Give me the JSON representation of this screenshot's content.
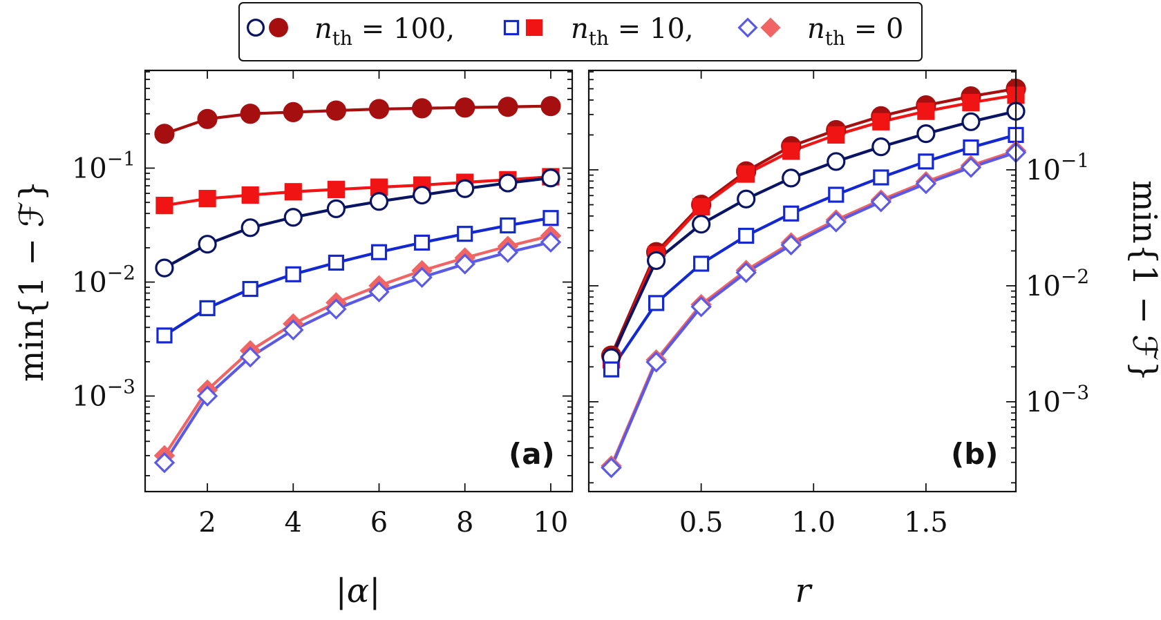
{
  "legend": {
    "entries": [
      {
        "label": "n_th = 100,",
        "n_value": "100",
        "punct": ","
      },
      {
        "label": "n_th = 10,",
        "n_value": "10",
        "punct": ","
      },
      {
        "label": "n_th = 0",
        "n_value": "0",
        "punct": ""
      }
    ],
    "var": "n",
    "sub": "th"
  },
  "chart_data": [
    {
      "type": "line",
      "panel": "(a)",
      "title": "",
      "xlabel": "|α|",
      "ylabel": "min{1 − ℱ}",
      "yscale": "log",
      "xlim": [
        0.55,
        10.5
      ],
      "ylim": [
        0.000145,
        0.72
      ],
      "xticks": [
        2,
        4,
        6,
        8,
        10
      ],
      "xtick_labels": [
        "2",
        "4",
        "6",
        "8",
        "10"
      ],
      "yticks": [
        0.001,
        0.01,
        0.1
      ],
      "ytick_labels": [
        {
          "base": "10",
          "exp": "−3"
        },
        {
          "base": "10",
          "exp": "−2"
        },
        {
          "base": "10",
          "exp": "−1"
        }
      ],
      "x": [
        1,
        2,
        3,
        4,
        5,
        6,
        7,
        8,
        9,
        10
      ],
      "series": [
        {
          "name": "n_th = 100 (filled)",
          "marker": "circle",
          "filled": true,
          "color": "#a50f0f",
          "values": [
            0.2,
            0.27,
            0.3,
            0.31,
            0.32,
            0.33,
            0.335,
            0.34,
            0.345,
            0.35
          ]
        },
        {
          "name": "n_th = 10 (filled)",
          "marker": "square",
          "filled": true,
          "color": "#f01414",
          "values": [
            0.047,
            0.054,
            0.058,
            0.062,
            0.065,
            0.068,
            0.071,
            0.075,
            0.079,
            0.084
          ]
        },
        {
          "name": "n_th = 100 (open)",
          "marker": "circle",
          "filled": false,
          "color": "#0a1464",
          "values": [
            0.0133,
            0.0215,
            0.03,
            0.037,
            0.044,
            0.051,
            0.058,
            0.066,
            0.074,
            0.082
          ]
        },
        {
          "name": "n_th = 10 (open)",
          "marker": "square",
          "filled": false,
          "color": "#1428d2",
          "values": [
            0.0034,
            0.0059,
            0.0087,
            0.0117,
            0.0148,
            0.0183,
            0.0222,
            0.0265,
            0.0314,
            0.0365
          ]
        },
        {
          "name": "n_th = 0 (filled)",
          "marker": "diamond",
          "filled": true,
          "color": "#f06464",
          "values": [
            0.0003,
            0.00113,
            0.0025,
            0.0043,
            0.0066,
            0.0093,
            0.0126,
            0.0163,
            0.0206,
            0.0255
          ]
        },
        {
          "name": "n_th = 0 (open)",
          "marker": "diamond",
          "filled": false,
          "color": "#5a5ae6",
          "values": [
            0.00026,
            0.001,
            0.0022,
            0.0038,
            0.0058,
            0.0082,
            0.011,
            0.0144,
            0.0182,
            0.0224
          ]
        }
      ]
    },
    {
      "type": "line",
      "panel": "(b)",
      "title": "",
      "xlabel": "r",
      "ylabel": "min{1 − ℱ}",
      "yscale": "log",
      "xlim": [
        0.0,
        1.9
      ],
      "ylim": [
        0.000168,
        0.72
      ],
      "xticks": [
        0.5,
        1.0,
        1.5
      ],
      "xtick_labels": [
        "0.5",
        "1.0",
        "1.5"
      ],
      "yticks": [
        0.001,
        0.01,
        0.1
      ],
      "ytick_labels": [
        {
          "base": "10",
          "exp": "−3"
        },
        {
          "base": "10",
          "exp": "−2"
        },
        {
          "base": "10",
          "exp": "−1"
        }
      ],
      "x": [
        0.1,
        0.3,
        0.5,
        0.7,
        0.9,
        1.1,
        1.3,
        1.5,
        1.7,
        1.9
      ],
      "series": [
        {
          "name": "n_th = 100 (filled)",
          "marker": "circle",
          "filled": true,
          "color": "#a50f0f",
          "values": [
            0.0025,
            0.0195,
            0.05,
            0.097,
            0.16,
            0.22,
            0.29,
            0.36,
            0.43,
            0.5
          ]
        },
        {
          "name": "n_th = 10 (filled)",
          "marker": "square",
          "filled": true,
          "color": "#f01414",
          "values": [
            0.0023,
            0.0185,
            0.048,
            0.092,
            0.145,
            0.2,
            0.26,
            0.32,
            0.38,
            0.44
          ]
        },
        {
          "name": "n_th = 100 (open)",
          "marker": "circle",
          "filled": false,
          "color": "#0a1464",
          "values": [
            0.0024,
            0.0165,
            0.034,
            0.056,
            0.085,
            0.118,
            0.158,
            0.205,
            0.26,
            0.32
          ]
        },
        {
          "name": "n_th = 10 (open)",
          "marker": "square",
          "filled": false,
          "color": "#1428d2",
          "values": [
            0.0019,
            0.0071,
            0.0155,
            0.027,
            0.042,
            0.061,
            0.086,
            0.118,
            0.156,
            0.2
          ]
        },
        {
          "name": "n_th = 0 (filled)",
          "marker": "diamond",
          "filled": true,
          "color": "#f06464",
          "values": [
            0.00028,
            0.0023,
            0.0069,
            0.0136,
            0.0235,
            0.037,
            0.055,
            0.079,
            0.109,
            0.146
          ]
        },
        {
          "name": "n_th = 0 (open)",
          "marker": "diamond",
          "filled": false,
          "color": "#5a5ae6",
          "values": [
            0.00027,
            0.0022,
            0.0066,
            0.013,
            0.0225,
            0.0355,
            0.053,
            0.076,
            0.105,
            0.141
          ]
        }
      ]
    }
  ]
}
